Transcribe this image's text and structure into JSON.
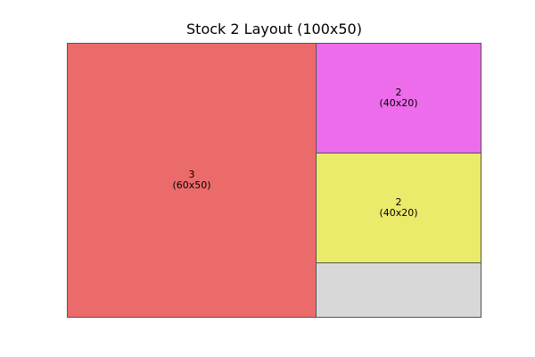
{
  "title": "Stock 2 Layout (100x50)",
  "stock": {
    "width": 100,
    "height": 50,
    "waste_color": "#d8d8d8"
  },
  "pieces": [
    {
      "id": "3",
      "size": "(60x50)",
      "color": "#eb6b6b"
    },
    {
      "id": "2",
      "size": "(40x20)",
      "color": "#ec6ceb"
    },
    {
      "id": "2",
      "size": "(40x20)",
      "color": "#eaea6b"
    }
  ]
}
